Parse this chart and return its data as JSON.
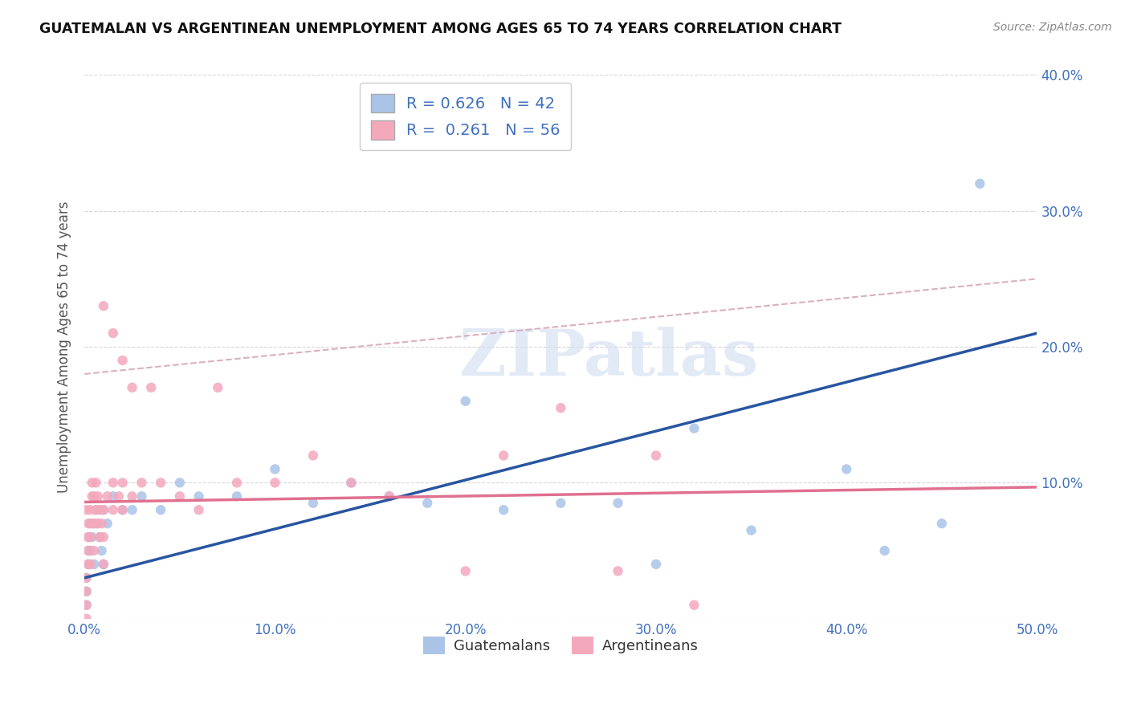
{
  "title": "GUATEMALAN VS ARGENTINEAN UNEMPLOYMENT AMONG AGES 65 TO 74 YEARS CORRELATION CHART",
  "source": "Source: ZipAtlas.com",
  "ylabel": "Unemployment Among Ages 65 to 74 years",
  "xlim": [
    0.0,
    0.5
  ],
  "ylim": [
    0.0,
    0.4
  ],
  "xticks": [
    0.0,
    0.1,
    0.2,
    0.3,
    0.4,
    0.5
  ],
  "yticks": [
    0.0,
    0.1,
    0.2,
    0.3,
    0.4
  ],
  "xtick_labels": [
    "0.0%",
    "10.0%",
    "20.0%",
    "30.0%",
    "40.0%",
    "50.0%"
  ],
  "ytick_labels": [
    "",
    "10.0%",
    "20.0%",
    "30.0%",
    "40.0%"
  ],
  "guatemalan_color": "#aac4e8",
  "argentinean_color": "#f4a8bc",
  "guatemalan_line_color": "#2855a0",
  "argentinean_line_color": "#e07090",
  "trend_dash_color": "#d8a8b8",
  "R_guatemalan": 0.626,
  "N_guatemalan": 42,
  "R_argentinean": 0.261,
  "N_argentinean": 56,
  "legend_label_guatemalan": "Guatemalans",
  "legend_label_argentinean": "Argentineans",
  "watermark": "ZIPatlas",
  "guatemalan_line": [
    0.03,
    0.21
  ],
  "argentinean_line": [
    0.18,
    0.25
  ],
  "guatemalan_x": [
    0.001,
    0.001,
    0.001,
    0.002,
    0.002,
    0.002,
    0.003,
    0.003,
    0.004,
    0.005,
    0.005,
    0.006,
    0.007,
    0.008,
    0.009,
    0.01,
    0.01,
    0.012,
    0.015,
    0.02,
    0.025,
    0.03,
    0.04,
    0.05,
    0.06,
    0.08,
    0.1,
    0.12,
    0.14,
    0.16,
    0.18,
    0.2,
    0.22,
    0.25,
    0.28,
    0.3,
    0.32,
    0.35,
    0.4,
    0.42,
    0.45,
    0.47
  ],
  "guatemalan_y": [
    0.01,
    0.02,
    0.03,
    0.04,
    0.05,
    0.06,
    0.07,
    0.05,
    0.06,
    0.04,
    0.07,
    0.08,
    0.07,
    0.06,
    0.05,
    0.08,
    0.04,
    0.07,
    0.09,
    0.08,
    0.08,
    0.09,
    0.08,
    0.1,
    0.09,
    0.09,
    0.11,
    0.085,
    0.1,
    0.09,
    0.085,
    0.16,
    0.08,
    0.085,
    0.085,
    0.04,
    0.14,
    0.065,
    0.11,
    0.05,
    0.07,
    0.32
  ],
  "argentinean_x": [
    0.001,
    0.001,
    0.001,
    0.001,
    0.001,
    0.002,
    0.002,
    0.002,
    0.002,
    0.003,
    0.003,
    0.003,
    0.004,
    0.004,
    0.004,
    0.005,
    0.005,
    0.005,
    0.006,
    0.006,
    0.007,
    0.007,
    0.008,
    0.008,
    0.009,
    0.01,
    0.01,
    0.01,
    0.012,
    0.015,
    0.015,
    0.018,
    0.02,
    0.02,
    0.025,
    0.03,
    0.035,
    0.04,
    0.05,
    0.06,
    0.07,
    0.08,
    0.1,
    0.12,
    0.14,
    0.16,
    0.2,
    0.22,
    0.25,
    0.28,
    0.3,
    0.32,
    0.01,
    0.015,
    0.02,
    0.025
  ],
  "argentinean_y": [
    0.0,
    0.01,
    0.02,
    0.03,
    0.08,
    0.04,
    0.05,
    0.06,
    0.07,
    0.04,
    0.06,
    0.08,
    0.07,
    0.09,
    0.1,
    0.05,
    0.07,
    0.09,
    0.08,
    0.1,
    0.07,
    0.09,
    0.06,
    0.08,
    0.07,
    0.04,
    0.06,
    0.08,
    0.09,
    0.08,
    0.1,
    0.09,
    0.08,
    0.1,
    0.09,
    0.1,
    0.17,
    0.1,
    0.09,
    0.08,
    0.17,
    0.1,
    0.1,
    0.12,
    0.1,
    0.09,
    0.035,
    0.12,
    0.155,
    0.035,
    0.12,
    0.01,
    0.23,
    0.21,
    0.19,
    0.17
  ]
}
